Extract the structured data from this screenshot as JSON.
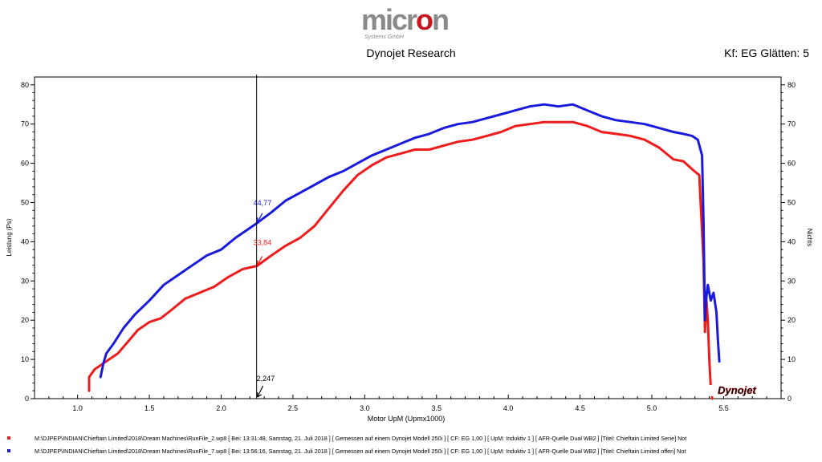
{
  "header": {
    "logo_text": "micron",
    "logo_sub": "Systems GmbH",
    "title": "Dynojet Research",
    "filter": "Kf: EG Glätten: 5"
  },
  "colors": {
    "run1": "#ee1c1c",
    "run2": "#1a1adc",
    "logo_red": "#c8161e",
    "logo_grey": "#8a8a8a"
  },
  "watermark": "Dynojet",
  "chart_data": {
    "type": "line",
    "title": "Dynojet Research",
    "xlabel": "Motor UpM (Upmx1000)",
    "ylabel": "Leistung (Ps)",
    "y2label": "Nichts",
    "xlim": [
      0.7,
      5.9
    ],
    "ylim": [
      0,
      82
    ],
    "xticks": [
      "1.0",
      "1.5",
      "2.0",
      "2.5",
      "3.0",
      "3.5",
      "4.0",
      "4.5",
      "5.0",
      "5.5"
    ],
    "yticks": [
      "0",
      "10",
      "20",
      "30",
      "40",
      "50",
      "60",
      "70",
      "80"
    ],
    "cursor": {
      "x": 2.247,
      "label": "2,247"
    },
    "series": [
      {
        "name": "Run 2",
        "color": "#ee1c1c",
        "cursor_value": "33,84",
        "points": [
          [
            1.08,
            2
          ],
          [
            1.08,
            5.5
          ],
          [
            1.12,
            7.5
          ],
          [
            1.2,
            9.5
          ],
          [
            1.28,
            11.5
          ],
          [
            1.35,
            14.5
          ],
          [
            1.42,
            17.5
          ],
          [
            1.5,
            19.5
          ],
          [
            1.58,
            20.5
          ],
          [
            1.65,
            22.5
          ],
          [
            1.75,
            25.5
          ],
          [
            1.85,
            27
          ],
          [
            1.95,
            28.5
          ],
          [
            2.05,
            31
          ],
          [
            2.15,
            33
          ],
          [
            2.25,
            33.84
          ],
          [
            2.35,
            36.5
          ],
          [
            2.45,
            39
          ],
          [
            2.55,
            41
          ],
          [
            2.65,
            44
          ],
          [
            2.75,
            48.5
          ],
          [
            2.85,
            53
          ],
          [
            2.95,
            57
          ],
          [
            3.05,
            59.5
          ],
          [
            3.15,
            61.5
          ],
          [
            3.25,
            62.5
          ],
          [
            3.35,
            63.5
          ],
          [
            3.45,
            63.5
          ],
          [
            3.55,
            64.5
          ],
          [
            3.65,
            65.5
          ],
          [
            3.75,
            66
          ],
          [
            3.85,
            67
          ],
          [
            3.95,
            68
          ],
          [
            4.05,
            69.5
          ],
          [
            4.15,
            70
          ],
          [
            4.25,
            70.5
          ],
          [
            4.35,
            70.5
          ],
          [
            4.45,
            70.5
          ],
          [
            4.55,
            69.5
          ],
          [
            4.65,
            68
          ],
          [
            4.75,
            67.5
          ],
          [
            4.85,
            67
          ],
          [
            4.95,
            66
          ],
          [
            5.05,
            64
          ],
          [
            5.15,
            61
          ],
          [
            5.22,
            60.5
          ],
          [
            5.28,
            58.5
          ],
          [
            5.33,
            57
          ],
          [
            5.36,
            35
          ],
          [
            5.37,
            17
          ],
          [
            5.38,
            25
          ],
          [
            5.39,
            20
          ],
          [
            5.4,
            10
          ],
          [
            5.41,
            3
          ],
          [
            5.42,
            0
          ]
        ]
      },
      {
        "name": "Run 7",
        "color": "#1a1adc",
        "cursor_value": "44,77",
        "points": [
          [
            1.16,
            5.5
          ],
          [
            1.18,
            9
          ],
          [
            1.2,
            11.5
          ],
          [
            1.25,
            14
          ],
          [
            1.32,
            18
          ],
          [
            1.4,
            21.5
          ],
          [
            1.5,
            25
          ],
          [
            1.6,
            29
          ],
          [
            1.7,
            31.5
          ],
          [
            1.8,
            34
          ],
          [
            1.9,
            36.5
          ],
          [
            2.0,
            38
          ],
          [
            2.1,
            41
          ],
          [
            2.2,
            43.5
          ],
          [
            2.25,
            44.77
          ],
          [
            2.35,
            47.5
          ],
          [
            2.45,
            50.5
          ],
          [
            2.55,
            52.5
          ],
          [
            2.65,
            54.5
          ],
          [
            2.75,
            56.5
          ],
          [
            2.85,
            58
          ],
          [
            2.95,
            60
          ],
          [
            3.05,
            62
          ],
          [
            3.15,
            63.5
          ],
          [
            3.25,
            65
          ],
          [
            3.35,
            66.5
          ],
          [
            3.45,
            67.5
          ],
          [
            3.55,
            69
          ],
          [
            3.65,
            70
          ],
          [
            3.75,
            70.5
          ],
          [
            3.85,
            71.5
          ],
          [
            3.95,
            72.5
          ],
          [
            4.05,
            73.5
          ],
          [
            4.15,
            74.5
          ],
          [
            4.25,
            75
          ],
          [
            4.35,
            74.5
          ],
          [
            4.45,
            75
          ],
          [
            4.55,
            73.5
          ],
          [
            4.65,
            72
          ],
          [
            4.75,
            71
          ],
          [
            4.85,
            70.5
          ],
          [
            4.95,
            70
          ],
          [
            5.05,
            69
          ],
          [
            5.15,
            68
          ],
          [
            5.22,
            67.5
          ],
          [
            5.28,
            67
          ],
          [
            5.32,
            66
          ],
          [
            5.35,
            62
          ],
          [
            5.36,
            45
          ],
          [
            5.37,
            20
          ],
          [
            5.38,
            26
          ],
          [
            5.39,
            29
          ],
          [
            5.41,
            25
          ],
          [
            5.43,
            27
          ],
          [
            5.45,
            22
          ],
          [
            5.46,
            15
          ],
          [
            5.47,
            9.5
          ]
        ]
      }
    ]
  },
  "footer": {
    "lines": [
      {
        "marker_color": "#ee1c1c",
        "text": "M:\\DJPEP\\INDIAN\\Chieftain Limited\\2018\\Dream Machines\\RunFile_2.wp8   [ Bei: 13:31:48, Samstag, 21. Juli 2018 ]  [ Gemessen auf einem Dynojet Modell 250i ]  [ CF: EG 1,00 ]  [ UpM: Induktiv 1 ]  [ AFR-Quelle  Dual WB2 ]  [Titel: Chieftain Limited Serie]  Not"
      },
      {
        "marker_color": "#1a1adc",
        "text": "M:\\DJPEP\\INDIAN\\Chieftain Limited\\2018\\Dream Machines\\RunFile_7.wp8   [ Bei: 13:56:16, Samstag, 21. Juli 2018 ]  [ Gemessen auf einem Dynojet Modell 250i ]  [ CF: EG 1,00 ]  [ UpM: Induktiv 1 ]  [ AFR-Quelle  Dual WB2 ]  [Titel: Chieftain Limited offen]  Not"
      }
    ]
  }
}
